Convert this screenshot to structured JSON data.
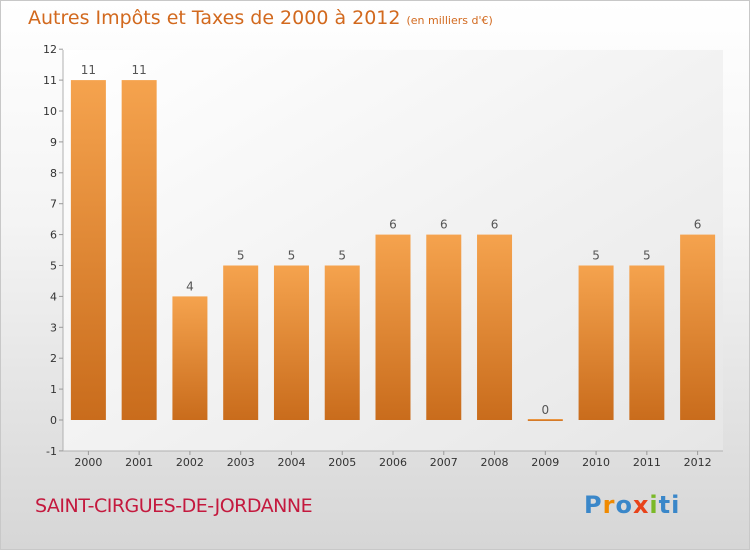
{
  "header": {
    "title": "Autres Impôts et Taxes de 2000 à 2012",
    "unit_note": "(en milliers d'€)"
  },
  "commune": "SAINT-CIRGUES-DE-JORDANNE",
  "logo": {
    "text": "Proxiti"
  },
  "colors": {
    "bar_light": "#f5a34e",
    "bar_dark": "#c96c1c",
    "title": "#d2691e",
    "commune": "#c4193e"
  },
  "chart_data": {
    "type": "bar",
    "title": "Autres Impôts et Taxes de 2000 à 2012",
    "subtitle": "(en milliers d'€)",
    "categories": [
      "2000",
      "2001",
      "2002",
      "2003",
      "2004",
      "2005",
      "2006",
      "2007",
      "2008",
      "2009",
      "2010",
      "2011",
      "2012"
    ],
    "values": [
      11,
      11,
      4,
      5,
      5,
      5,
      6,
      6,
      6,
      0,
      5,
      5,
      6
    ],
    "data_labels": [
      "11",
      "11",
      "4",
      "5",
      "5",
      "5",
      "6",
      "6",
      "6",
      "0",
      "5",
      "5",
      "6"
    ],
    "ylim": [
      -1,
      12
    ],
    "yticks": [
      "-1",
      "0",
      "1",
      "2",
      "3",
      "4",
      "5",
      "6",
      "7",
      "8",
      "9",
      "10",
      "11",
      "12"
    ],
    "grid": false,
    "legend": "none"
  }
}
